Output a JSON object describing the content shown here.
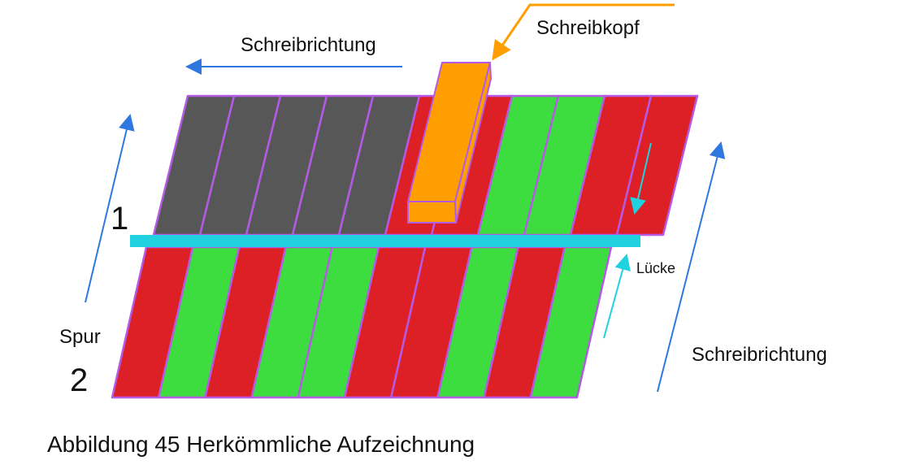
{
  "labels": {
    "write_direction_top": "Schreibrichtung",
    "write_head": "Schreibkopf",
    "gap": "Lücke",
    "write_direction_right": "Schreibrichtung",
    "track_word": "Spur",
    "track_1": "1",
    "track_2": "2",
    "caption": "Abbildung 45 Herkömmliche Aufzeichnung"
  },
  "colors": {
    "red": "#dd1f26",
    "green": "#3ddc3f",
    "dark_gray": "#575757",
    "stripe_border": "#b55ae5",
    "head_orange": "#ff9e00",
    "gap_cyan": "#20d2e0",
    "arrow_blue": "#2e78e0"
  },
  "tracks": [
    {
      "id": "1",
      "stripes": [
        "dark",
        "dark",
        "dark",
        "dark",
        "dark",
        "red",
        "red",
        "green",
        "green",
        "red",
        "red"
      ]
    },
    {
      "id": "2",
      "stripes": [
        "red",
        "green",
        "red",
        "green",
        "green",
        "red",
        "red",
        "green",
        "red",
        "green"
      ]
    }
  ]
}
